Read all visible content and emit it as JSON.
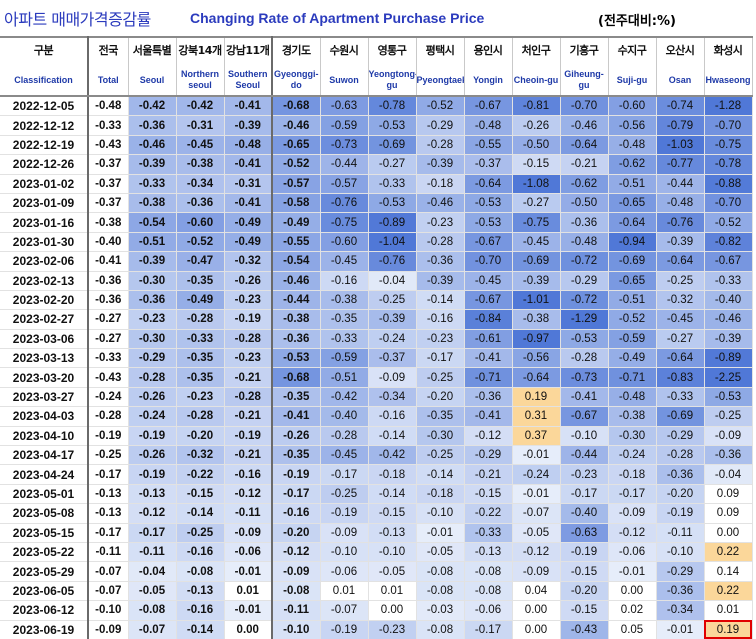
{
  "title": {
    "korean": "아파트 매매가격증감률",
    "english": "Changing Rate of Apartment Purchase Price",
    "unit": "(전주대비:%)"
  },
  "columns": [
    {
      "ko": "구분",
      "en": "Classification"
    },
    {
      "ko": "전국",
      "en": "Total"
    },
    {
      "ko": "서울특별",
      "en": "Seoul"
    },
    {
      "ko": "강북14개",
      "en": "Northern seoul"
    },
    {
      "ko": "강남11개",
      "en": "Southern Seoul"
    },
    {
      "ko": "경기도",
      "en": "Gyeonggi-do"
    },
    {
      "ko": "수원시",
      "en": "Suwon"
    },
    {
      "ko": "영통구",
      "en": "Yeongtong-gu"
    },
    {
      "ko": "평택시",
      "en": "Pyeongtaek"
    },
    {
      "ko": "용인시",
      "en": "Yongin"
    },
    {
      "ko": "처인구",
      "en": "Cheoin-gu"
    },
    {
      "ko": "기흥구",
      "en": "Giheung-gu"
    },
    {
      "ko": "수지구",
      "en": "Suji-gu"
    },
    {
      "ko": "오산시",
      "en": "Osan"
    },
    {
      "ko": "화성시",
      "en": "Hwaseong"
    }
  ],
  "rows": [
    {
      "date": "2022-12-05",
      "values": [
        "-0.48",
        "-0.42",
        "-0.42",
        "-0.41",
        "-0.68",
        "-0.63",
        "-0.78",
        "-0.52",
        "-0.67",
        "-0.81",
        "-0.70",
        "-0.60",
        "-0.74",
        "-1.28"
      ]
    },
    {
      "date": "2022-12-12",
      "values": [
        "-0.33",
        "-0.36",
        "-0.31",
        "-0.39",
        "-0.46",
        "-0.59",
        "-0.53",
        "-0.29",
        "-0.48",
        "-0.26",
        "-0.46",
        "-0.56",
        "-0.79",
        "-0.70"
      ]
    },
    {
      "date": "2022-12-19",
      "values": [
        "-0.43",
        "-0.46",
        "-0.45",
        "-0.48",
        "-0.65",
        "-0.73",
        "-0.69",
        "-0.28",
        "-0.55",
        "-0.50",
        "-0.64",
        "-0.48",
        "-1.03",
        "-0.75"
      ]
    },
    {
      "date": "2022-12-26",
      "values": [
        "-0.37",
        "-0.39",
        "-0.38",
        "-0.41",
        "-0.52",
        "-0.44",
        "-0.27",
        "-0.39",
        "-0.37",
        "-0.15",
        "-0.21",
        "-0.62",
        "-0.77",
        "-0.78"
      ]
    },
    {
      "date": "2023-01-02",
      "values": [
        "-0.37",
        "-0.33",
        "-0.34",
        "-0.31",
        "-0.57",
        "-0.57",
        "-0.33",
        "-0.18",
        "-0.64",
        "-1.08",
        "-0.62",
        "-0.51",
        "-0.44",
        "-0.88"
      ]
    },
    {
      "date": "2023-01-09",
      "values": [
        "-0.37",
        "-0.38",
        "-0.36",
        "-0.41",
        "-0.58",
        "-0.76",
        "-0.53",
        "-0.46",
        "-0.53",
        "-0.27",
        "-0.50",
        "-0.65",
        "-0.48",
        "-0.70"
      ]
    },
    {
      "date": "2023-01-16",
      "values": [
        "-0.38",
        "-0.54",
        "-0.60",
        "-0.49",
        "-0.49",
        "-0.75",
        "-0.89",
        "-0.23",
        "-0.53",
        "-0.75",
        "-0.36",
        "-0.64",
        "-0.76",
        "-0.52"
      ]
    },
    {
      "date": "2023-01-30",
      "values": [
        "-0.40",
        "-0.51",
        "-0.52",
        "-0.49",
        "-0.55",
        "-0.60",
        "-1.04",
        "-0.28",
        "-0.67",
        "-0.45",
        "-0.48",
        "-0.94",
        "-0.39",
        "-0.82"
      ]
    },
    {
      "date": "2023-02-06",
      "values": [
        "-0.41",
        "-0.39",
        "-0.47",
        "-0.32",
        "-0.54",
        "-0.45",
        "-0.76",
        "-0.36",
        "-0.70",
        "-0.69",
        "-0.72",
        "-0.69",
        "-0.64",
        "-0.67"
      ]
    },
    {
      "date": "2023-02-13",
      "values": [
        "-0.36",
        "-0.30",
        "-0.35",
        "-0.26",
        "-0.46",
        "-0.16",
        "-0.04",
        "-0.39",
        "-0.45",
        "-0.39",
        "-0.29",
        "-0.65",
        "-0.25",
        "-0.33"
      ]
    },
    {
      "date": "2023-02-20",
      "values": [
        "-0.36",
        "-0.36",
        "-0.49",
        "-0.23",
        "-0.44",
        "-0.38",
        "-0.25",
        "-0.14",
        "-0.67",
        "-1.01",
        "-0.72",
        "-0.51",
        "-0.32",
        "-0.40"
      ]
    },
    {
      "date": "2023-02-27",
      "values": [
        "-0.27",
        "-0.23",
        "-0.28",
        "-0.19",
        "-0.38",
        "-0.35",
        "-0.39",
        "-0.16",
        "-0.84",
        "-0.38",
        "-1.29",
        "-0.52",
        "-0.45",
        "-0.46"
      ]
    },
    {
      "date": "2023-03-06",
      "values": [
        "-0.27",
        "-0.30",
        "-0.33",
        "-0.28",
        "-0.36",
        "-0.33",
        "-0.24",
        "-0.23",
        "-0.61",
        "-0.97",
        "-0.53",
        "-0.59",
        "-0.27",
        "-0.39"
      ]
    },
    {
      "date": "2023-03-13",
      "values": [
        "-0.33",
        "-0.29",
        "-0.35",
        "-0.23",
        "-0.53",
        "-0.59",
        "-0.37",
        "-0.17",
        "-0.41",
        "-0.56",
        "-0.28",
        "-0.49",
        "-0.64",
        "-0.89"
      ]
    },
    {
      "date": "2023-03-20",
      "values": [
        "-0.43",
        "-0.28",
        "-0.35",
        "-0.21",
        "-0.68",
        "-0.51",
        "-0.09",
        "-0.25",
        "-0.71",
        "-0.64",
        "-0.73",
        "-0.71",
        "-0.83",
        "-2.25"
      ]
    },
    {
      "date": "2023-03-27",
      "values": [
        "-0.24",
        "-0.26",
        "-0.23",
        "-0.28",
        "-0.35",
        "-0.42",
        "-0.34",
        "-0.20",
        "-0.36",
        "0.19",
        "-0.41",
        "-0.48",
        "-0.33",
        "-0.53"
      ]
    },
    {
      "date": "2023-04-03",
      "values": [
        "-0.28",
        "-0.24",
        "-0.28",
        "-0.21",
        "-0.41",
        "-0.40",
        "-0.16",
        "-0.35",
        "-0.41",
        "0.31",
        "-0.67",
        "-0.38",
        "-0.69",
        "-0.25"
      ]
    },
    {
      "date": "2023-04-10",
      "values": [
        "-0.19",
        "-0.19",
        "-0.20",
        "-0.19",
        "-0.26",
        "-0.28",
        "-0.14",
        "-0.30",
        "-0.12",
        "0.37",
        "-0.10",
        "-0.30",
        "-0.29",
        "-0.09"
      ]
    },
    {
      "date": "2023-04-17",
      "values": [
        "-0.25",
        "-0.26",
        "-0.32",
        "-0.21",
        "-0.35",
        "-0.45",
        "-0.42",
        "-0.25",
        "-0.29",
        "-0.01",
        "-0.44",
        "-0.24",
        "-0.28",
        "-0.36"
      ]
    },
    {
      "date": "2023-04-24",
      "values": [
        "-0.17",
        "-0.19",
        "-0.22",
        "-0.16",
        "-0.19",
        "-0.17",
        "-0.18",
        "-0.14",
        "-0.21",
        "-0.24",
        "-0.23",
        "-0.18",
        "-0.36",
        "-0.04"
      ]
    },
    {
      "date": "2023-05-01",
      "values": [
        "-0.13",
        "-0.13",
        "-0.15",
        "-0.12",
        "-0.17",
        "-0.25",
        "-0.14",
        "-0.18",
        "-0.15",
        "-0.01",
        "-0.17",
        "-0.17",
        "-0.20",
        "0.09"
      ]
    },
    {
      "date": "2023-05-08",
      "values": [
        "-0.13",
        "-0.12",
        "-0.14",
        "-0.11",
        "-0.16",
        "-0.19",
        "-0.15",
        "-0.10",
        "-0.22",
        "-0.07",
        "-0.40",
        "-0.09",
        "-0.19",
        "0.09"
      ]
    },
    {
      "date": "2023-05-15",
      "values": [
        "-0.17",
        "-0.17",
        "-0.25",
        "-0.09",
        "-0.20",
        "-0.09",
        "-0.13",
        "-0.01",
        "-0.33",
        "-0.05",
        "-0.63",
        "-0.12",
        "-0.11",
        "0.00"
      ]
    },
    {
      "date": "2023-05-22",
      "values": [
        "-0.11",
        "-0.11",
        "-0.16",
        "-0.06",
        "-0.12",
        "-0.10",
        "-0.10",
        "-0.05",
        "-0.13",
        "-0.12",
        "-0.19",
        "-0.06",
        "-0.10",
        "0.22"
      ]
    },
    {
      "date": "2023-05-29",
      "values": [
        "-0.07",
        "-0.04",
        "-0.08",
        "-0.01",
        "-0.09",
        "-0.06",
        "-0.05",
        "-0.08",
        "-0.08",
        "-0.09",
        "-0.15",
        "-0.01",
        "-0.29",
        "0.14"
      ]
    },
    {
      "date": "2023-06-05",
      "values": [
        "-0.07",
        "-0.05",
        "-0.13",
        "0.01",
        "-0.08",
        "0.01",
        "0.01",
        "-0.08",
        "-0.08",
        "0.04",
        "-0.20",
        "0.00",
        "-0.36",
        "0.22"
      ]
    },
    {
      "date": "2023-06-12",
      "values": [
        "-0.10",
        "-0.08",
        "-0.16",
        "-0.01",
        "-0.11",
        "-0.07",
        "0.00",
        "-0.03",
        "-0.06",
        "0.00",
        "-0.15",
        "0.02",
        "-0.34",
        "0.01"
      ]
    },
    {
      "date": "2023-06-19",
      "values": [
        "-0.09",
        "-0.07",
        "-0.14",
        "0.00",
        "-0.10",
        "-0.19",
        "-0.23",
        "-0.08",
        "-0.17",
        "0.00",
        "-0.43",
        "0.05",
        "-0.01",
        "0.19"
      ]
    }
  ],
  "colors": {
    "title_blue": "#2b3bbd",
    "negative_strong": "#5f84dc",
    "negative_light": "#dfe8f8",
    "positive": "#fbd79a",
    "highlight_border": "#e00000"
  },
  "highlighted_cell": {
    "row": "2023-06-19",
    "column": "화성시",
    "value": "0.19"
  }
}
